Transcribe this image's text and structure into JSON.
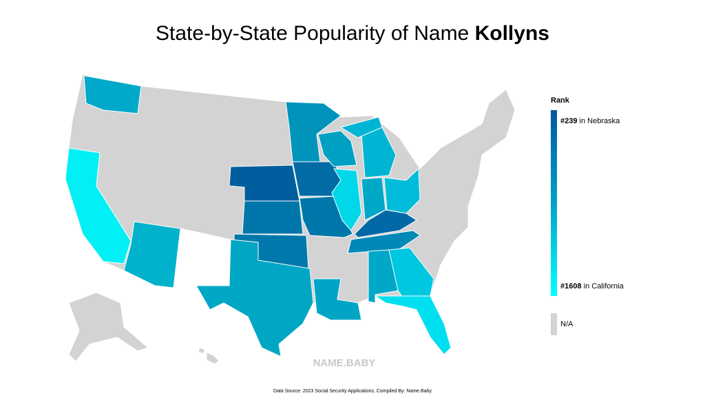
{
  "title": {
    "text": "State-by-State Popularity of Name",
    "name": "Kollyns"
  },
  "legend": {
    "title": "Rank",
    "top": {
      "rank": "#239",
      "label": "in Nebraska"
    },
    "bottom": {
      "rank": "#1608",
      "label": "in California"
    },
    "na": "N/A"
  },
  "watermark": "NAME.BABY",
  "source": "Data Source: 2023 Social Security Applications; Compiled By: Name.Baby"
}
